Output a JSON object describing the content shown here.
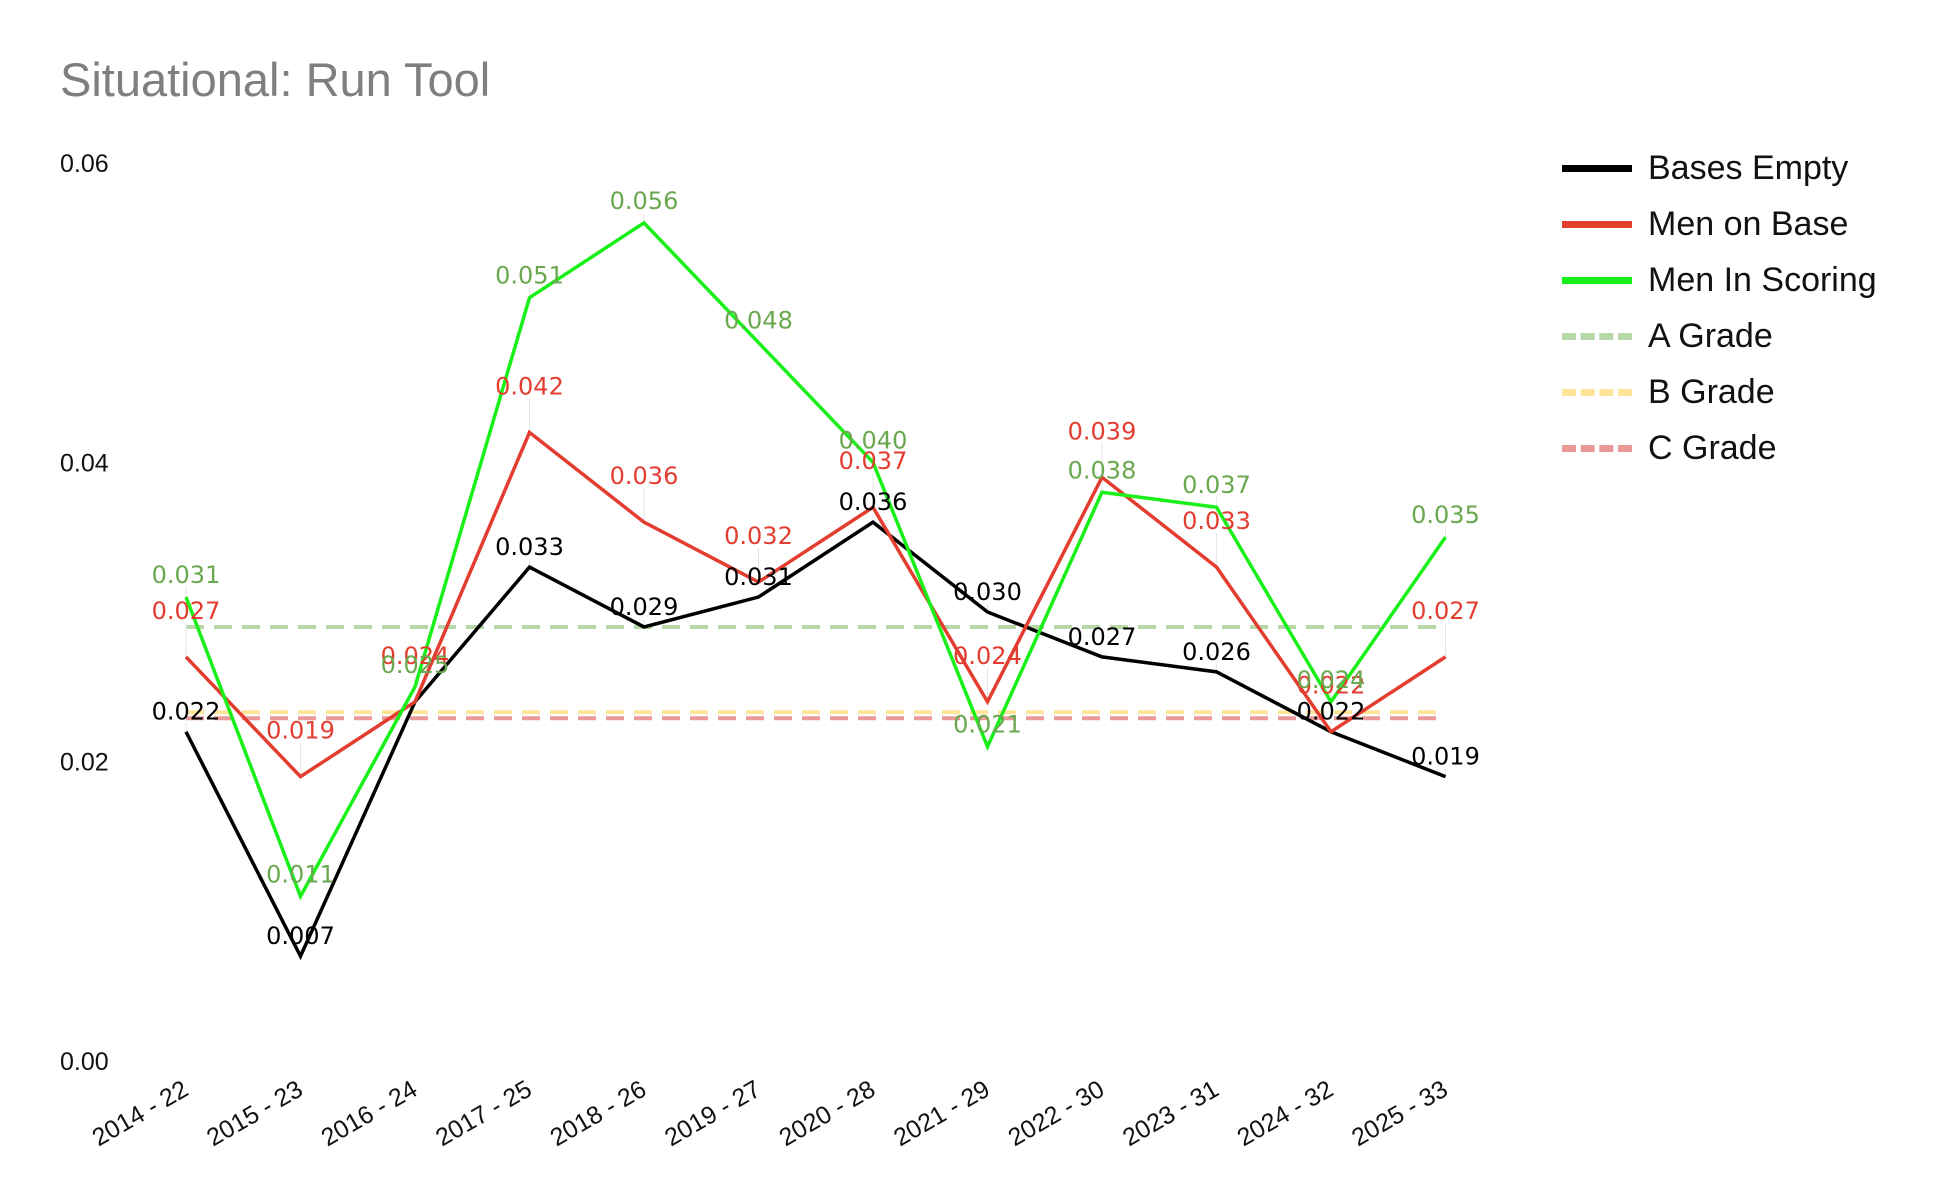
{
  "chart_data": {
    "type": "line",
    "title": "Situational: Run Tool",
    "xlabel": "",
    "ylabel": "",
    "ylim": [
      0,
      0.06
    ],
    "yticks": [
      "0.00",
      "0.02",
      "0.04",
      "0.06"
    ],
    "yticks_values": [
      0,
      0.02,
      0.04,
      0.06
    ],
    "grid": false,
    "legend_position": "right",
    "categories": [
      "2014 - 22",
      "2015 - 23",
      "2016 - 24",
      "2017 - 25",
      "2018 - 26",
      "2019 - 27",
      "2020 - 28",
      "2021 - 29",
      "2022 - 30",
      "2023 - 31",
      "2024 - 32",
      "2025 - 33"
    ],
    "series": [
      {
        "name": "Bases Empty",
        "color": "#000000",
        "label_color": "#000000",
        "style": "solid",
        "values": [
          0.022,
          0.007,
          0.024,
          0.033,
          0.029,
          0.031,
          0.036,
          0.03,
          0.027,
          0.026,
          0.022,
          0.019
        ],
        "labels": [
          "0.022",
          "0.007",
          "",
          "0.033",
          "0.029",
          "0.031",
          "0.036",
          "0.030",
          "0.027",
          "0.026",
          "0.022",
          "0.019"
        ]
      },
      {
        "name": "Men on Base",
        "color": "#e33d30",
        "label_color": "#e33d30",
        "style": "solid",
        "values": [
          0.027,
          0.019,
          0.024,
          0.042,
          0.036,
          0.032,
          0.037,
          0.024,
          0.039,
          0.033,
          0.022,
          0.027
        ],
        "labels": [
          "0.027",
          "0.019",
          "0.024",
          "0.042",
          "0.036",
          "0.032",
          "0.037",
          "0.024",
          "0.039",
          "0.033",
          "0.022",
          "0.027"
        ]
      },
      {
        "name": "Men In Scoring",
        "color": "#19ef19",
        "label_color": "#6aa84f",
        "style": "solid",
        "values": [
          0.031,
          0.011,
          0.025,
          0.051,
          0.056,
          0.048,
          0.04,
          0.021,
          0.038,
          0.037,
          0.024,
          0.035
        ],
        "labels": [
          "0.031",
          "0.011",
          "0.025",
          "0.051",
          "0.056",
          "0.048",
          "0.040",
          "0.021",
          "0.038",
          "0.037",
          "0.024",
          "0.035"
        ]
      },
      {
        "name": "A Grade",
        "color": "#b6d7a8",
        "style": "dashed",
        "values": [
          0.029,
          0.029,
          0.029,
          0.029,
          0.029,
          0.029,
          0.029,
          0.029,
          0.029,
          0.029,
          0.029,
          0.029
        ]
      },
      {
        "name": "B Grade",
        "color": "#ffe599",
        "style": "dashed",
        "values": [
          0.0233,
          0.0233,
          0.0233,
          0.0233,
          0.0233,
          0.0233,
          0.0233,
          0.0233,
          0.0233,
          0.0233,
          0.0233,
          0.0233
        ]
      },
      {
        "name": "C Grade",
        "color": "#ea9999",
        "style": "dashed",
        "values": [
          0.0229,
          0.0229,
          0.0229,
          0.0229,
          0.0229,
          0.0229,
          0.0229,
          0.0229,
          0.0229,
          0.0229,
          0.0229,
          0.0229
        ]
      }
    ]
  }
}
